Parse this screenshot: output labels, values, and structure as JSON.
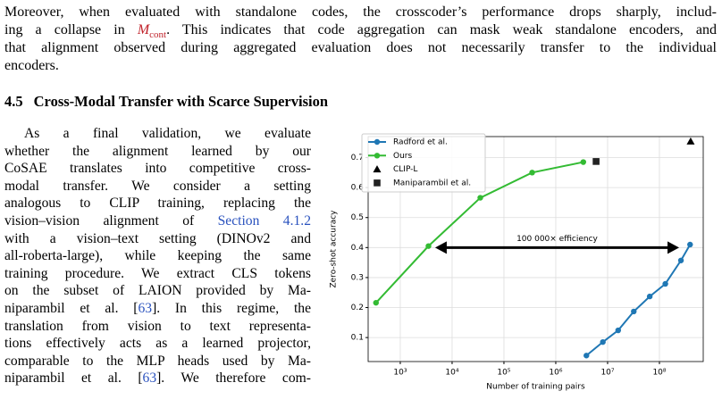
{
  "paragraph": {
    "lines": [
      [
        "Moreover, when evaluated with standalone codes, the crosscoder’s performance drops sharply, includ-"
      ],
      [
        "ing a collapse in ",
        {
          "math": "M",
          "sub": "cont"
        },
        ". This indicates that code aggregation can mask weak standalone encoders, and"
      ],
      [
        "that alignment observed during aggregated evaluation does not necessarily transfer to the individual"
      ],
      [
        "encoders."
      ]
    ]
  },
  "section": {
    "number": "4.5",
    "title": "Cross-Modal Transfer with Scarce Supervision"
  },
  "left_column": {
    "lines": [
      [
        "As a final validation, we evaluate"
      ],
      [
        "whether the alignment learned by our"
      ],
      [
        "CoSAE translates into competitive cross-"
      ],
      [
        "modal transfer.  We consider a setting"
      ],
      [
        "analogous to CLIP training, replacing the"
      ],
      [
        "vision–vision alignment of ",
        {
          "link": "Section 4.1.2"
        }
      ],
      [
        "with a vision–text setting (DINOv2 and"
      ],
      [
        "all-roberta-large), while keeping the same"
      ],
      [
        "training procedure. We extract CLS tokens"
      ],
      [
        "on the subset of LAION provided by Ma-"
      ],
      [
        "niparambil et al. [",
        {
          "link": "63"
        },
        "]. In this regime, the"
      ],
      [
        "translation from vision to text representa-"
      ],
      [
        "tions effectively acts as a learned projector,"
      ],
      [
        "comparable to the MLP heads used by Ma-"
      ],
      [
        "niparambil et al. [",
        {
          "link": "63"
        },
        "]. We therefore com-"
      ]
    ]
  },
  "chart_data": {
    "type": "line",
    "x_label": "Number of training pairs",
    "y_label": "Zero-shot accuracy",
    "x_scale": "log",
    "xlim": [
      240,
      700000000
    ],
    "ylim": [
      0.02,
      0.77
    ],
    "xticks": [
      {
        "value": 1000,
        "label": "10³"
      },
      {
        "value": 10000,
        "label": "10⁴"
      },
      {
        "value": 100000,
        "label": "10⁵"
      },
      {
        "value": 1000000,
        "label": "10⁶"
      },
      {
        "value": 10000000,
        "label": "10⁷"
      },
      {
        "value": 100000000,
        "label": "10⁸"
      }
    ],
    "yticks": [
      0.1,
      0.2,
      0.3,
      0.4,
      0.5,
      0.6,
      0.7
    ],
    "grid": true,
    "legend": "upper left",
    "series": [
      {
        "name": "Radford et al.",
        "color": "#1f77b4",
        "marker": "circle",
        "style": "line",
        "x": [
          3900000,
          8100000,
          16000000,
          32000000,
          65000000,
          130000000,
          260000000,
          390000000
        ],
        "values": [
          0.04,
          0.085,
          0.124,
          0.187,
          0.237,
          0.279,
          0.357,
          0.41
        ]
      },
      {
        "name": "Ours",
        "color": "#33bb33",
        "marker": "circle",
        "style": "line",
        "x": [
          340,
          3500,
          35000,
          350000,
          3400000
        ],
        "values": [
          0.216,
          0.405,
          0.566,
          0.65,
          0.685
        ]
      },
      {
        "name": "CLIP-L",
        "color": "#000000",
        "marker": "triangle",
        "style": "scatter",
        "x": [
          400000000
        ],
        "values": [
          0.754
        ]
      },
      {
        "name": "Maniparambil et al.",
        "color": "#222222",
        "marker": "square",
        "style": "scatter",
        "x": [
          6000000
        ],
        "values": [
          0.687
        ]
      }
    ],
    "annotation": {
      "text": "100 000× efficiency",
      "x": [
        4700,
        240000000
      ],
      "y": 0.4
    }
  }
}
